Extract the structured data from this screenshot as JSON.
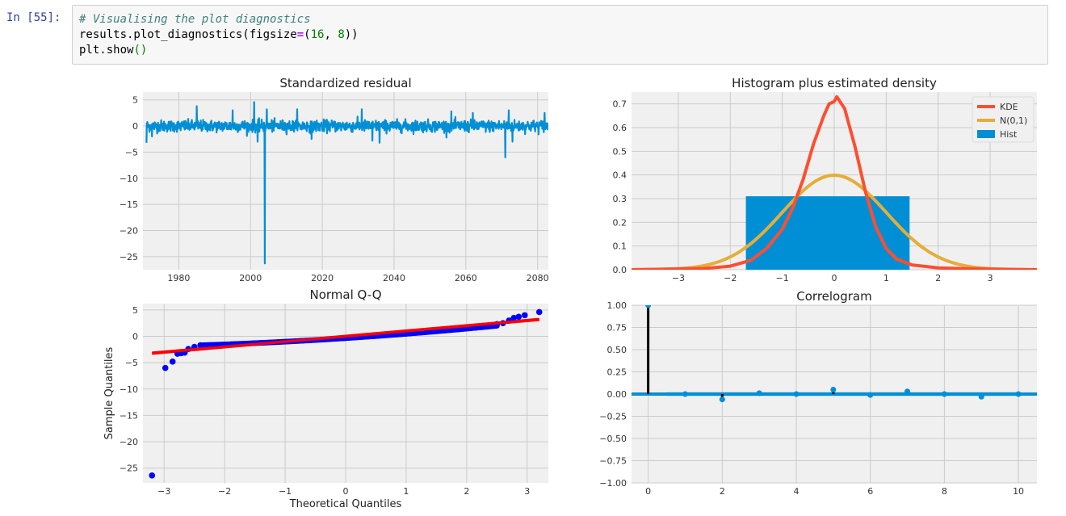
{
  "cell": {
    "prompt": "In [55]:",
    "code_line1": "# Visualising the plot diagnostics",
    "code_line2_prefix": "results.plot_diagnostics(figsize",
    "code_line2_eq": "=",
    "code_line2_open": "(",
    "code_line2_num1": "16",
    "code_line2_sep": ", ",
    "code_line2_num2": "8",
    "code_line2_close": "))",
    "code_line3_prefix": "plt.show",
    "code_line3_parens": "()"
  },
  "colors": {
    "prompt": "#303f9f",
    "comment": "#408080",
    "operator": "#aa22ff",
    "number": "#008000",
    "axes_bg": "#f0f0f0",
    "grid": "#cbcbcb",
    "primary": "#008fd5",
    "kde": "#fc4f30",
    "normal": "#e5ae38",
    "qq_points": "#0000ff",
    "qq_line": "#ff0000",
    "acf_lag0": "#000000"
  },
  "chart_data": [
    {
      "id": "residual",
      "type": "line",
      "title": "Standardized residual",
      "xlabel": "",
      "ylabel": "",
      "xlim": [
        1970,
        2083
      ],
      "ylim": [
        -27.5,
        6.5
      ],
      "xticks": [
        1980,
        2000,
        2020,
        2040,
        2060,
        2080
      ],
      "yticks": [
        5,
        0,
        -5,
        -10,
        -15,
        -20,
        -25
      ],
      "grid": true,
      "series_note": "dense daily residual series; mostly within about ±2",
      "spikes": [
        {
          "x": 1971,
          "y": -3.2
        },
        {
          "x": 1972.5,
          "y": -2.0
        },
        {
          "x": 1985,
          "y": 3.8
        },
        {
          "x": 1995,
          "y": 3.0
        },
        {
          "x": 2001,
          "y": 4.6
        },
        {
          "x": 2002,
          "y": -3.0
        },
        {
          "x": 2004,
          "y": -26.3
        },
        {
          "x": 2004.5,
          "y": 3.2
        },
        {
          "x": 2013,
          "y": 3.2
        },
        {
          "x": 2017,
          "y": -2.5
        },
        {
          "x": 2031,
          "y": 3.2
        },
        {
          "x": 2034,
          "y": -2.8
        },
        {
          "x": 2036,
          "y": -3.2
        },
        {
          "x": 2056,
          "y": 2.8
        },
        {
          "x": 2062,
          "y": 2.5
        },
        {
          "x": 2071,
          "y": -6.0
        },
        {
          "x": 2072,
          "y": 3.0
        },
        {
          "x": 2073,
          "y": -3.0
        },
        {
          "x": 2082,
          "y": 2.5
        }
      ]
    },
    {
      "id": "histogram",
      "type": "bar",
      "title": "Histogram plus estimated density",
      "xlabel": "",
      "ylabel": "",
      "xlim": [
        -3.9,
        3.9
      ],
      "ylim": [
        0,
        0.75
      ],
      "xticks": [
        -3,
        -2,
        -1,
        0,
        1,
        2,
        3
      ],
      "yticks": [
        0.0,
        0.1,
        0.2,
        0.3,
        0.4,
        0.5,
        0.6,
        0.7
      ],
      "grid": true,
      "legend": {
        "position": "top-right",
        "entries": [
          "KDE",
          "N(0,1)",
          "Hist"
        ]
      },
      "bars": [
        {
          "x0": -1.7,
          "x1": 1.45,
          "value": 0.31
        }
      ],
      "series": [
        {
          "name": "KDE",
          "x": [
            -3.9,
            -2.5,
            -2.0,
            -1.6,
            -1.3,
            -1.0,
            -0.8,
            -0.6,
            -0.4,
            -0.2,
            -0.1,
            0.0,
            0.05,
            0.2,
            0.4,
            0.6,
            0.8,
            1.0,
            1.2,
            1.5,
            2.0,
            2.5,
            3.9
          ],
          "y": [
            0.0,
            0.005,
            0.015,
            0.04,
            0.09,
            0.17,
            0.26,
            0.38,
            0.53,
            0.65,
            0.7,
            0.71,
            0.73,
            0.68,
            0.52,
            0.33,
            0.18,
            0.09,
            0.045,
            0.02,
            0.008,
            0.004,
            0.0
          ]
        },
        {
          "name": "N(0,1)",
          "distribution": "standard-normal",
          "x_range": [
            -3.9,
            3.9
          ]
        }
      ]
    },
    {
      "id": "qq",
      "type": "scatter",
      "title": "Normal Q-Q",
      "xlabel": "Theoretical Quantiles",
      "ylabel": "Sample Quantiles",
      "xlim": [
        -3.35,
        3.35
      ],
      "ylim": [
        -27.8,
        6.2
      ],
      "xticks": [
        -3,
        -2,
        -1,
        0,
        1,
        2,
        3
      ],
      "yticks": [
        5,
        0,
        -5,
        -10,
        -15,
        -20,
        -25
      ],
      "grid": true,
      "points_tail": [
        {
          "x": -3.2,
          "y": -26.4
        },
        {
          "x": -2.98,
          "y": -6.0
        },
        {
          "x": -2.86,
          "y": -4.8
        },
        {
          "x": -2.78,
          "y": -3.3
        },
        {
          "x": -2.72,
          "y": -3.2
        },
        {
          "x": -2.66,
          "y": -3.1
        },
        {
          "x": -2.6,
          "y": -2.4
        },
        {
          "x": -2.5,
          "y": -2.0
        },
        {
          "x": -2.4,
          "y": -1.7
        },
        {
          "x": 2.5,
          "y": 2.3
        },
        {
          "x": 2.6,
          "y": 2.5
        },
        {
          "x": 2.7,
          "y": 3.0
        },
        {
          "x": 2.78,
          "y": 3.5
        },
        {
          "x": 2.86,
          "y": 3.7
        },
        {
          "x": 2.96,
          "y": 4.0
        },
        {
          "x": 3.2,
          "y": 4.6
        }
      ],
      "body": {
        "x_range": [
          -2.4,
          2.5
        ],
        "y_at_start": -1.7,
        "y_at_end": 2.0
      },
      "reference_line": {
        "slope": 1.0,
        "intercept": 0.0,
        "x_range": [
          -3.2,
          3.2
        ]
      }
    },
    {
      "id": "correlogram",
      "type": "stem",
      "title": "Correlogram",
      "xlabel": "",
      "ylabel": "",
      "xlim": [
        -0.45,
        10.5
      ],
      "ylim": [
        -1.0,
        1.0
      ],
      "xticks": [
        0,
        2,
        4,
        6,
        8,
        10
      ],
      "yticks": [
        "1.00",
        "0.75",
        "0.50",
        "0.25",
        "0.00",
        "−0.25",
        "−0.50",
        "−0.75",
        "−1.00"
      ],
      "grid": true,
      "lags": [
        0,
        1,
        2,
        3,
        4,
        5,
        6,
        7,
        8,
        9,
        10
      ],
      "values": [
        1.0,
        0.0,
        -0.06,
        0.01,
        0.0,
        0.05,
        -0.01,
        0.03,
        0.0,
        -0.03,
        0.0
      ],
      "confidence_band": 0.025
    }
  ]
}
